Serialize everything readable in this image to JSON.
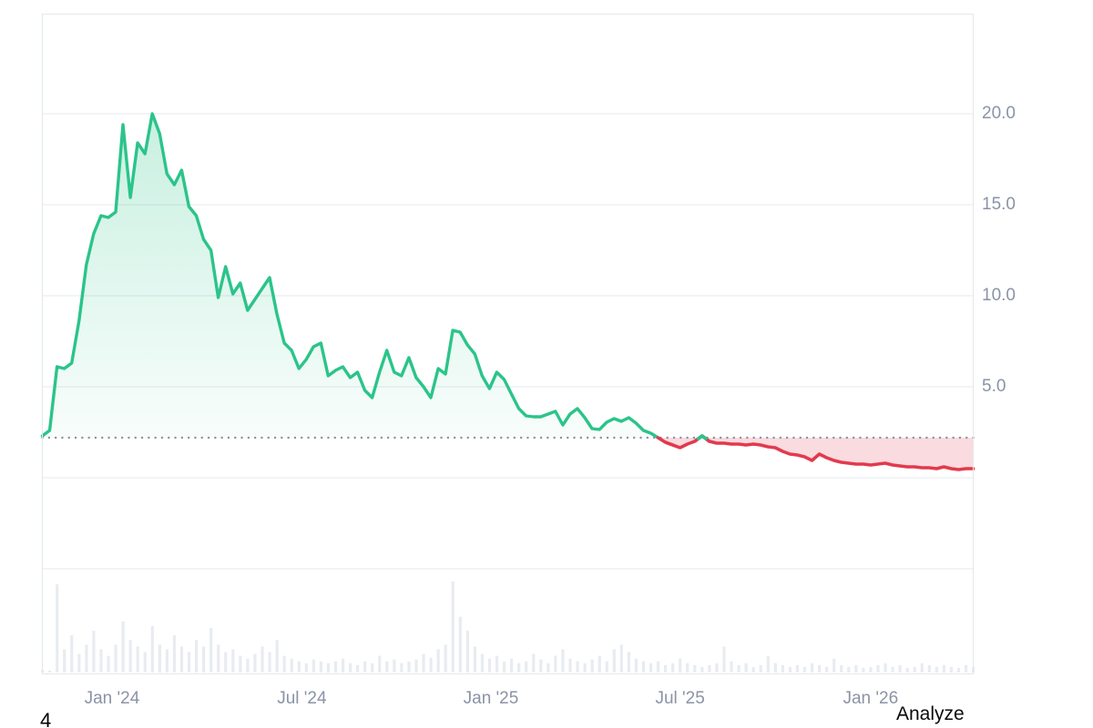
{
  "footer": {
    "analyze_label": "Analyze",
    "corner_text": "4"
  },
  "colors": {
    "historical_line": "#2bc48a",
    "historical_fill_top": "rgba(43,196,138,0.26)",
    "historical_fill_bottom": "rgba(43,196,138,0.03)",
    "predicted_line": "#e23a4d",
    "predicted_fill": "rgba(226,58,77,0.18)",
    "baseline_dots": "#8d939e",
    "gridline": "#eef0f3",
    "plot_border": "#e4e7eb",
    "axis_text": "#8a93a6",
    "volume_bar": "#e8ecf1"
  },
  "chart_data": {
    "type": "area",
    "title": "",
    "xlabel": "",
    "ylabel": "",
    "legend": "none",
    "grid": "horizontal",
    "y_axis_side": "right",
    "y_ticks": [
      "20.0",
      "15.0",
      "10.0",
      "5.0"
    ],
    "y_tick_values": [
      20,
      15,
      10,
      5
    ],
    "grid_values": [
      20,
      15,
      10,
      5,
      0,
      -5
    ],
    "baseline_value": 2.2,
    "baseline_style": "dotted",
    "x_ticks": [
      "Jan '24",
      "Jul '24",
      "Jan '25",
      "Jul '25",
      "Jan '26"
    ],
    "x_tick_week_positions": [
      9.5,
      35.4,
      61.2,
      87.0,
      113.0
    ],
    "weeks_total": 128,
    "x_range_note": "weekly points, late Oct 2023 through early Apr 2026",
    "series": [
      {
        "name": "historical-price",
        "style": "area-to-baseline",
        "start_week": 0,
        "values": [
          2.3,
          2.6,
          6.1,
          6.0,
          6.3,
          8.6,
          11.7,
          13.4,
          14.4,
          14.3,
          14.6,
          19.4,
          15.4,
          18.4,
          17.8,
          20.0,
          18.9,
          16.7,
          16.1,
          16.9,
          14.9,
          14.4,
          13.1,
          12.5,
          9.9,
          11.6,
          10.1,
          10.7,
          9.2,
          9.8,
          10.4,
          11.0,
          9.0,
          7.4,
          7.0,
          6.0,
          6.5,
          7.2,
          7.4,
          5.6,
          5.9,
          6.1,
          5.5,
          5.8,
          4.8,
          4.4,
          5.8,
          7.0,
          5.8,
          5.6,
          6.6,
          5.5,
          5.0,
          4.4,
          6.0,
          5.7,
          8.1,
          8.0,
          7.3,
          6.8,
          5.6,
          4.9,
          5.8,
          5.4,
          4.6,
          3.8,
          3.4,
          3.35,
          3.35,
          3.5,
          3.65,
          2.9,
          3.5,
          3.8,
          3.3,
          2.7,
          2.65,
          3.05,
          3.25,
          3.1,
          3.3,
          3.0,
          2.6,
          2.45,
          2.2
        ]
      },
      {
        "name": "predicted-price",
        "style": "area-to-baseline",
        "start_week": 85,
        "values": [
          1.95,
          1.8,
          1.65,
          1.85,
          2.0,
          2.3,
          2.0,
          1.9,
          1.9,
          1.85,
          1.85,
          1.8,
          1.85,
          1.8,
          1.7,
          1.65,
          1.45,
          1.3,
          1.25,
          1.15,
          0.95,
          1.3,
          1.1,
          0.95,
          0.85,
          0.8,
          0.75,
          0.75,
          0.7,
          0.75,
          0.8,
          0.7,
          0.65,
          0.6,
          0.6,
          0.55,
          0.55,
          0.5,
          0.6,
          0.5,
          0.45,
          0.5,
          0.5
        ]
      }
    ],
    "volume": {
      "name": "volume-bars",
      "relative_values": [
        3,
        2,
        95,
        25,
        40,
        20,
        30,
        45,
        25,
        18,
        30,
        55,
        35,
        28,
        22,
        50,
        30,
        25,
        40,
        28,
        22,
        35,
        28,
        48,
        30,
        22,
        25,
        18,
        15,
        20,
        28,
        22,
        35,
        18,
        15,
        12,
        10,
        14,
        12,
        10,
        12,
        15,
        10,
        8,
        12,
        10,
        18,
        12,
        14,
        10,
        12,
        14,
        20,
        16,
        25,
        30,
        98,
        60,
        45,
        28,
        20,
        15,
        18,
        12,
        15,
        10,
        12,
        20,
        14,
        10,
        18,
        25,
        15,
        12,
        10,
        14,
        18,
        12,
        25,
        30,
        22,
        15,
        12,
        10,
        12,
        8,
        10,
        15,
        10,
        8,
        6,
        8,
        10,
        28,
        12,
        8,
        10,
        6,
        8,
        18,
        10,
        8,
        6,
        8,
        6,
        10,
        8,
        6,
        15,
        8,
        6,
        8,
        5,
        6,
        8,
        10,
        6,
        8,
        5,
        6,
        10,
        8,
        6,
        8,
        6,
        5,
        8,
        6
      ]
    }
  }
}
